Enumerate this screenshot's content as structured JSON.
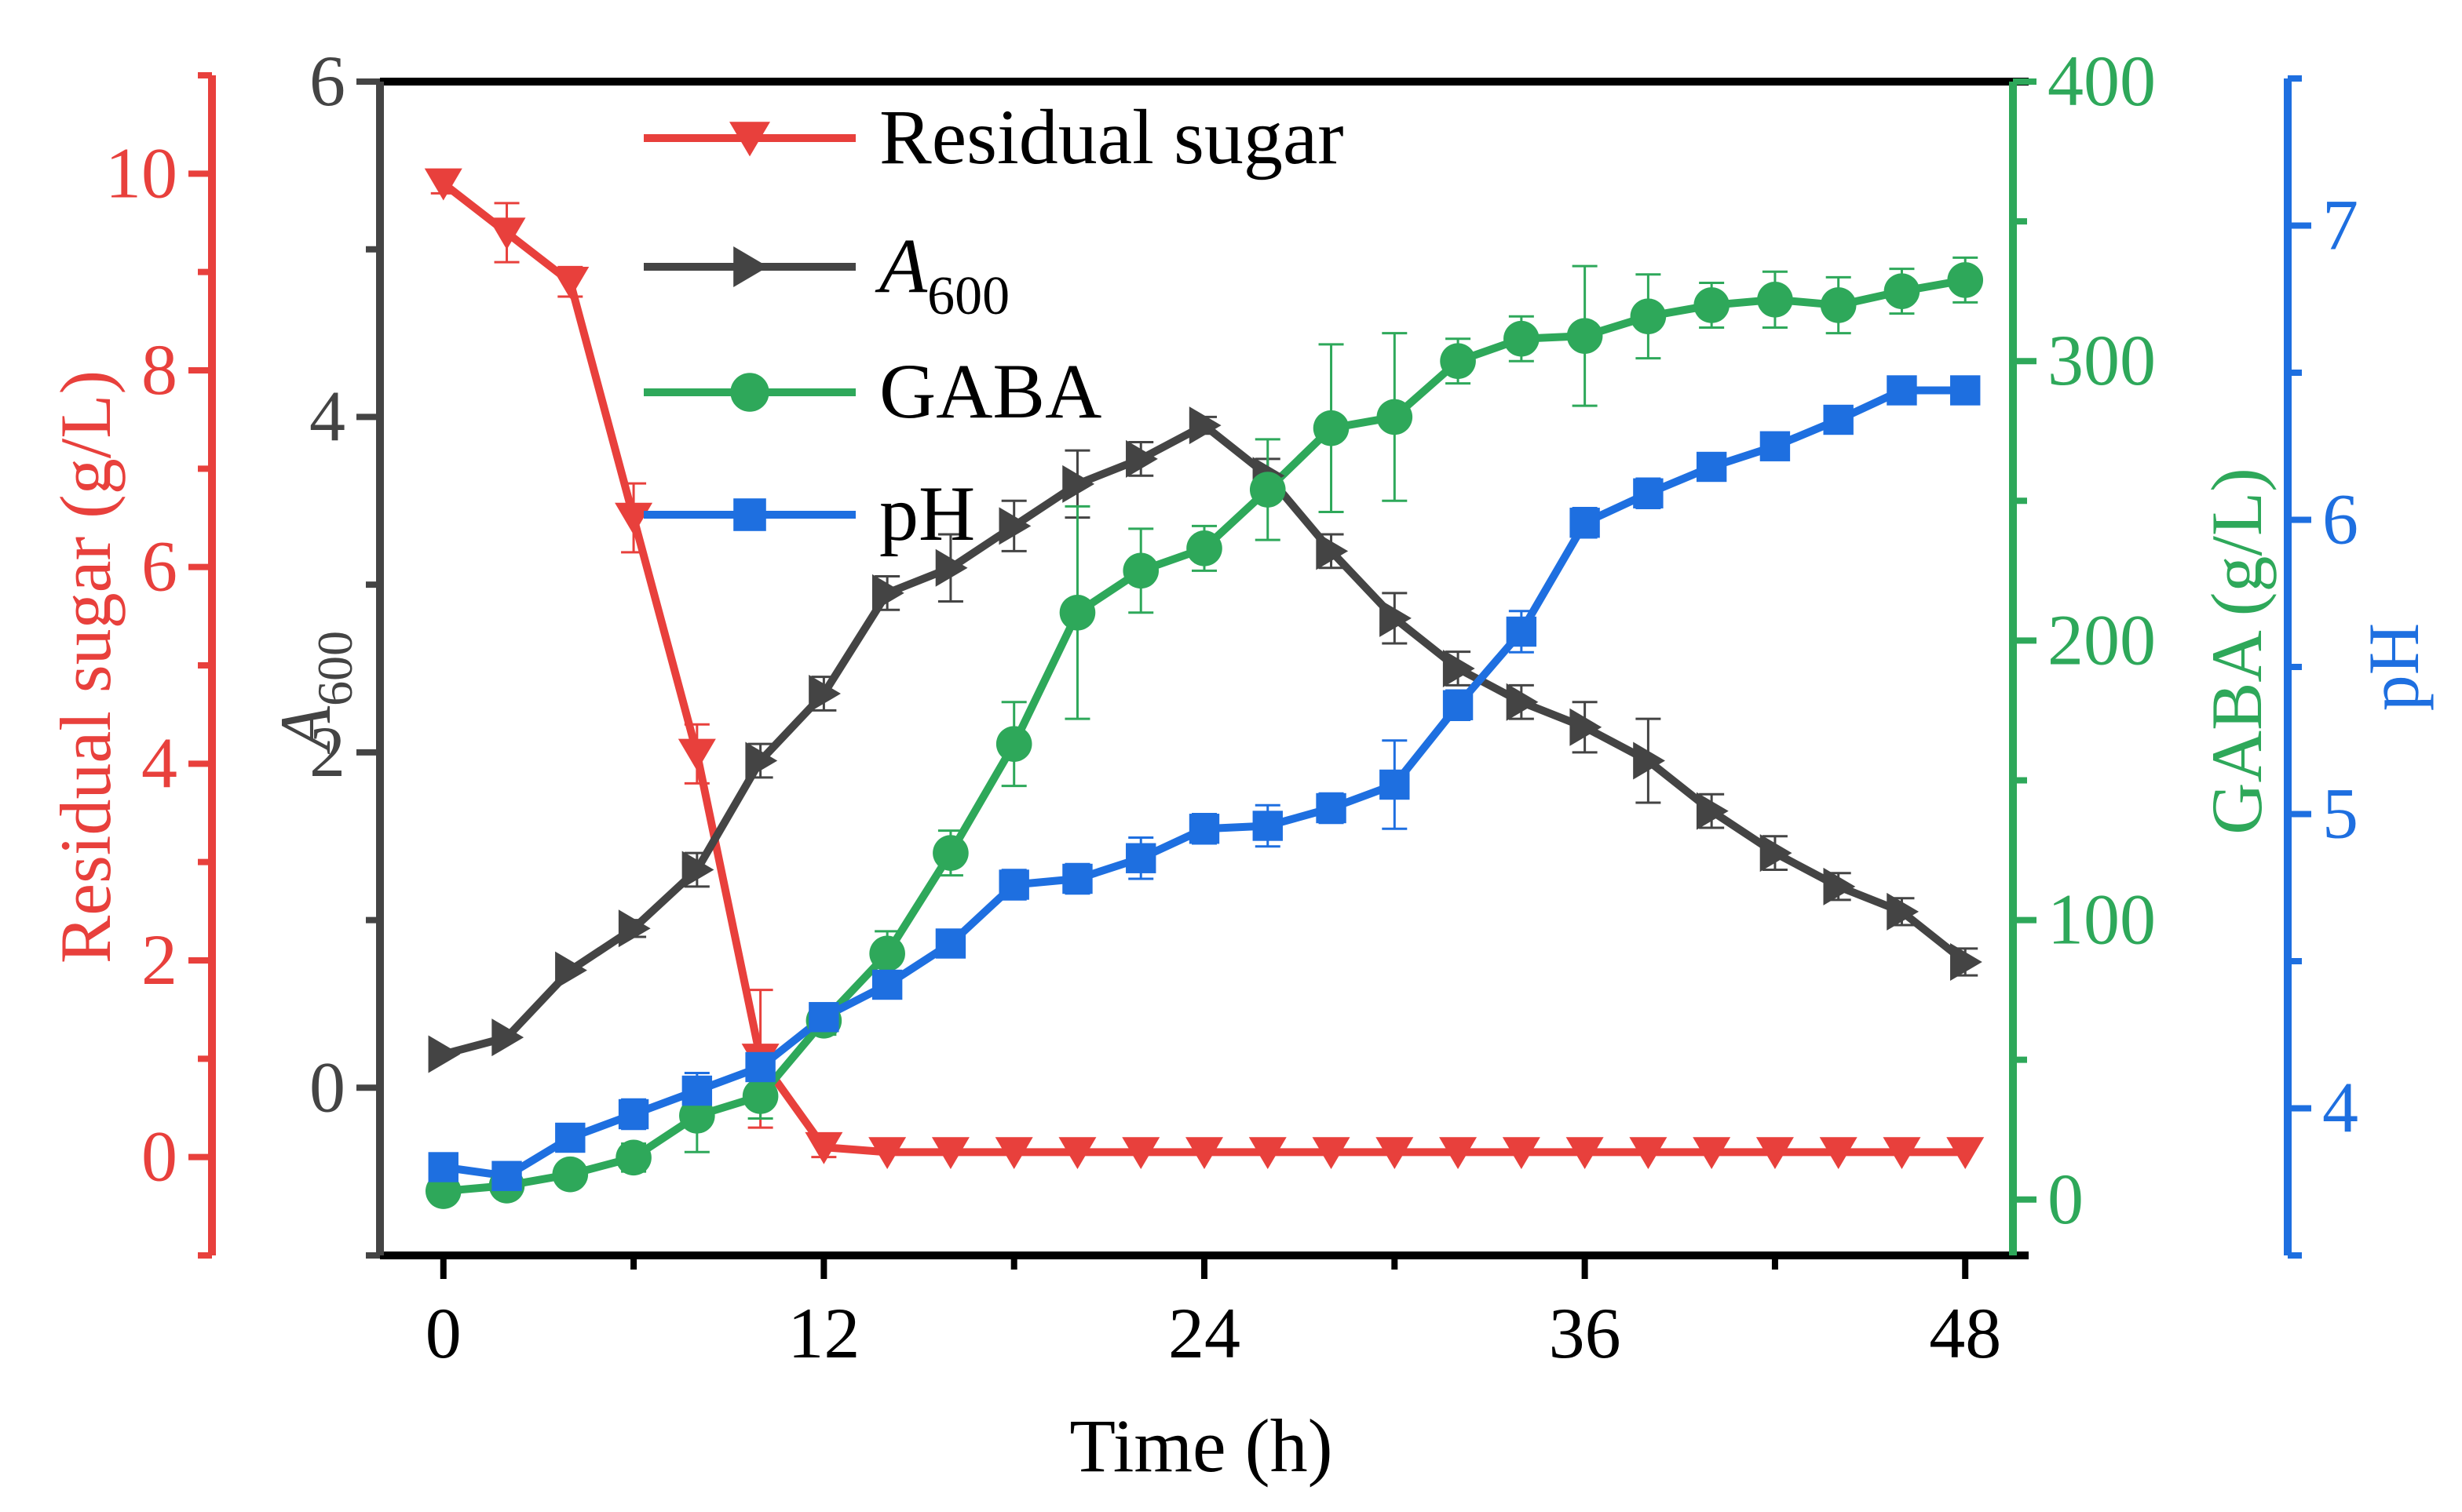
{
  "chart_data": {
    "type": "line",
    "xlabel": "Time (h)",
    "xlim": [
      -2,
      50
    ],
    "xticks": [
      0,
      12,
      24,
      36,
      48
    ],
    "x": [
      0,
      2,
      4,
      6,
      8,
      10,
      12,
      14,
      16,
      18,
      20,
      22,
      24,
      26,
      28,
      30,
      32,
      34,
      36,
      38,
      40,
      42,
      44,
      46,
      48
    ],
    "axes": {
      "sugar": {
        "label": "Residual sugar (g/L)",
        "range": [
          -1,
          11
        ],
        "ticks": [
          0,
          2,
          4,
          6,
          8,
          10
        ],
        "color": "#E8403C"
      },
      "a600": {
        "label_main": "A",
        "label_sub": "600",
        "range": [
          -1,
          6
        ],
        "ticks": [
          0,
          2,
          4,
          6
        ],
        "color": "#444444"
      },
      "gaba": {
        "label": "GABA (g/L)",
        "range": [
          -20,
          400
        ],
        "ticks": [
          0,
          100,
          200,
          300,
          400
        ],
        "color": "#2EA85A"
      },
      "ph": {
        "label": "pH",
        "range": [
          3.5,
          7.5
        ],
        "ticks": [
          4,
          5,
          6,
          7
        ],
        "color": "#1E6FE0"
      }
    },
    "legend_position": "top-left",
    "series": [
      {
        "name": "Residual sugar",
        "axis": "sugar",
        "marker": "triangle-down",
        "values": [
          9.9,
          9.4,
          8.9,
          6.5,
          4.1,
          1.0,
          0.1,
          0.05,
          0.05,
          0.05,
          0.05,
          0.05,
          0.05,
          0.05,
          0.05,
          0.05,
          0.05,
          0.05,
          0.05,
          0.05,
          0.05,
          0.05,
          0.05,
          0.05,
          0.05
        ],
        "errors": [
          0.1,
          0.3,
          0.15,
          0.35,
          0.3,
          0.7,
          0.1,
          0,
          0,
          0,
          0,
          0,
          0,
          0,
          0,
          0,
          0,
          0,
          0,
          0,
          0,
          0,
          0,
          0,
          0
        ]
      },
      {
        "name": "A600",
        "name_main": "A",
        "name_sub": "600",
        "axis": "a600",
        "marker": "triangle-right",
        "values": [
          0.2,
          0.3,
          0.7,
          0.95,
          1.3,
          1.95,
          2.35,
          2.95,
          3.1,
          3.35,
          3.6,
          3.75,
          3.95,
          3.65,
          3.2,
          2.8,
          2.5,
          2.3,
          2.15,
          1.95,
          1.65,
          1.4,
          1.2,
          1.05,
          0.75
        ],
        "errors": [
          0,
          0,
          0,
          0.05,
          0.1,
          0.1,
          0.1,
          0.1,
          0.2,
          0.15,
          0.2,
          0.1,
          0.05,
          0.1,
          0.1,
          0.15,
          0.1,
          0.1,
          0.15,
          0.25,
          0.1,
          0.1,
          0.08,
          0.08,
          0.08
        ]
      },
      {
        "name": "GABA",
        "axis": "gaba",
        "marker": "circle",
        "values": [
          3,
          5,
          9,
          15,
          30,
          37,
          64,
          88,
          124,
          163,
          210,
          225,
          233,
          254,
          276,
          280,
          300,
          308,
          309,
          316,
          320,
          322,
          320,
          325,
          329
        ],
        "errors": [
          0,
          0,
          3,
          5,
          13,
          8,
          5,
          8,
          8,
          15,
          38,
          15,
          8,
          18,
          30,
          30,
          8,
          8,
          25,
          15,
          8,
          10,
          10,
          8,
          8
        ]
      },
      {
        "name": "pH",
        "axis": "ph",
        "marker": "square",
        "values": [
          3.8,
          3.77,
          3.9,
          3.98,
          4.06,
          4.14,
          4.31,
          4.42,
          4.56,
          4.76,
          4.78,
          4.85,
          4.95,
          4.96,
          5.02,
          5.1,
          5.37,
          5.62,
          5.99,
          6.09,
          6.18,
          6.25,
          6.34,
          6.44,
          6.44
        ],
        "errors": [
          0,
          0,
          0.03,
          0.05,
          0.06,
          0.03,
          0.03,
          0.03,
          0.03,
          0.05,
          0.05,
          0.07,
          0.05,
          0.07,
          0.05,
          0.15,
          0.05,
          0.07,
          0.05,
          0.05,
          0.04,
          0.04,
          0.03,
          0.03,
          0.03
        ]
      }
    ]
  }
}
